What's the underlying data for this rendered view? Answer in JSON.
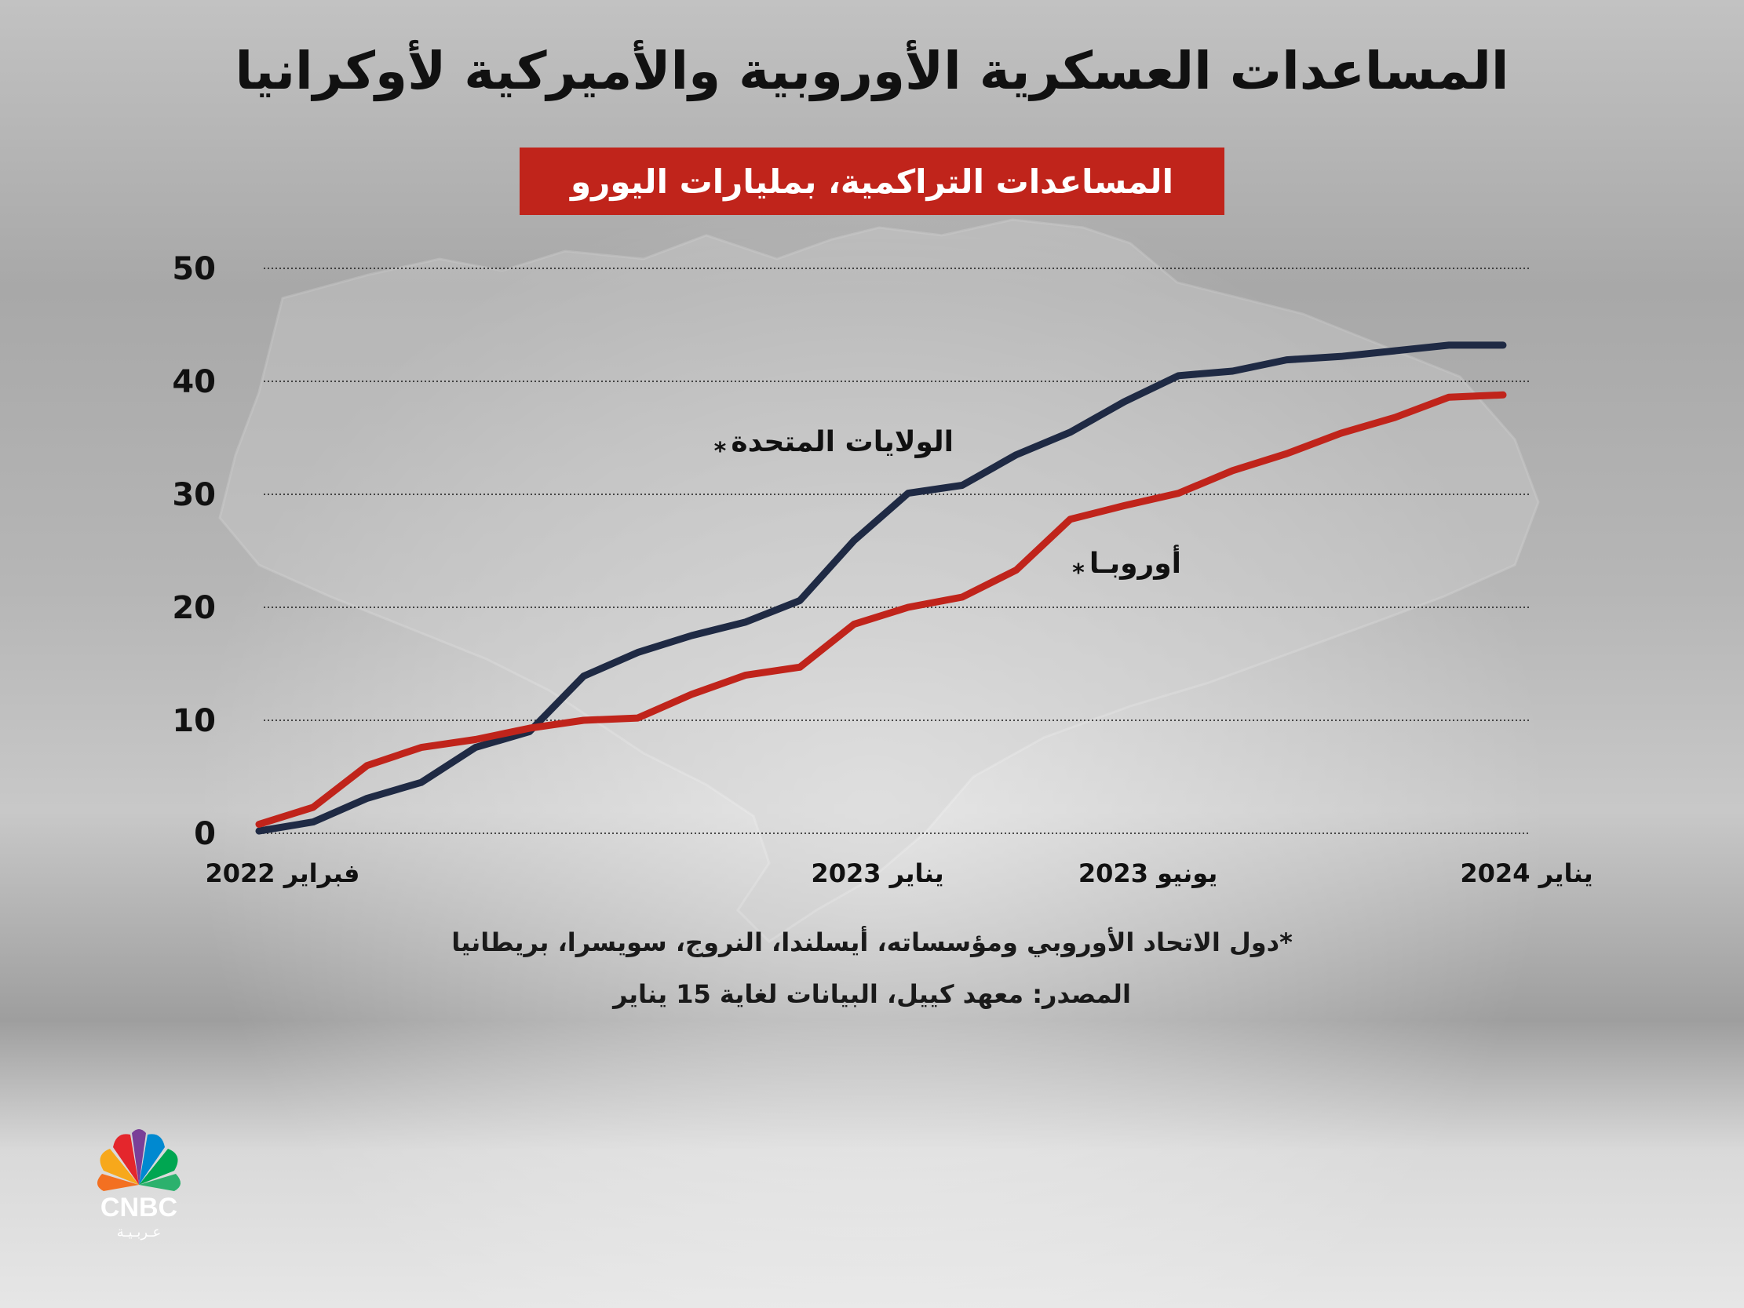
{
  "title": "المساعدات العسكرية الأوروبية والأميركية لأوكرانيا",
  "subtitle": "المساعدات التراكمية، بمليارات اليورو",
  "chart_data": {
    "type": "line",
    "y_ticks": [
      "0",
      "10",
      "20",
      "30",
      "40",
      "50"
    ],
    "ylim": [
      0,
      50
    ],
    "x_ticks": [
      {
        "label": "فبراير 2022",
        "index": 0
      },
      {
        "label": "يناير 2023",
        "index": 11
      },
      {
        "label": "يونيو 2023",
        "index": 16
      },
      {
        "label": "يناير 2024",
        "index": 23
      }
    ],
    "grid": true,
    "series": [
      {
        "name": "الولايات المتحدة",
        "marker": "*",
        "color": "#1f2a44",
        "values": [
          0.2,
          1.0,
          3.1,
          4.5,
          7.6,
          9.0,
          13.9,
          16.0,
          17.5,
          18.7,
          20.6,
          25.9,
          30.1,
          30.8,
          33.5,
          35.5,
          38.2,
          40.5,
          40.9,
          41.9,
          42.2,
          42.7,
          43.2,
          43.2
        ]
      },
      {
        "name": "أوروبـا",
        "marker": "*",
        "color": "#c0241b",
        "values": [
          0.8,
          2.3,
          6.0,
          7.6,
          8.3,
          9.3,
          10.0,
          10.2,
          12.3,
          14.0,
          14.7,
          18.5,
          20.0,
          20.9,
          23.3,
          27.8,
          29.0,
          30.1,
          32.1,
          33.6,
          35.4,
          36.8,
          38.6,
          38.8
        ]
      }
    ]
  },
  "footnote": "*دول الاتحاد الأوروبي ومؤسساته، أيسلندا، النروج، سويسرا، بريطانيا",
  "source": "المصدر: معهد كييل، البيانات لغاية 15 يناير",
  "logo": {
    "text": "CNBC",
    "subtext": "عـربـيـة",
    "icon": "peacock-icon"
  }
}
